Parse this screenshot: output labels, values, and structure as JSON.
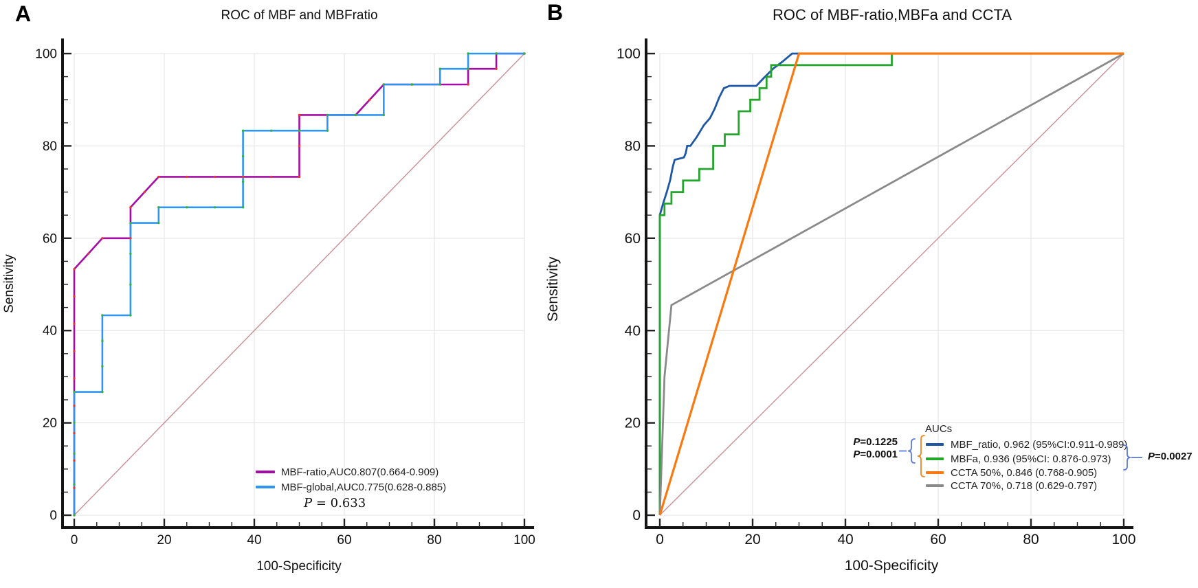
{
  "panels": [
    {
      "letter": "A"
    },
    {
      "letter": "B"
    }
  ],
  "chart_data": [
    {
      "type": "line",
      "title": "ROC of MBF and MBFratio",
      "xlabel": "100-Specificity",
      "ylabel": "Sensitivity",
      "xlim": [
        0,
        100
      ],
      "ylim": [
        0,
        100
      ],
      "xticks": [
        0,
        20,
        40,
        60,
        80,
        100
      ],
      "yticks": [
        0,
        20,
        40,
        60,
        80,
        100
      ],
      "minor_tick_step": 5,
      "grid": true,
      "reference_line": {
        "from": [
          0,
          0
        ],
        "to": [
          100,
          100
        ],
        "color": "#c98f94"
      },
      "series": [
        {
          "name": "MBF-ratio",
          "auc": 0.807,
          "ci": "0.664-0.909",
          "color": "#a50ba5",
          "marker_color": "#e8372c",
          "width": 2.6,
          "points": [
            [
              0,
              0
            ],
            [
              0,
              53.3
            ],
            [
              6.25,
              60
            ],
            [
              12.5,
              60
            ],
            [
              12.5,
              66.7
            ],
            [
              18.75,
              73.3
            ],
            [
              50,
              73.3
            ],
            [
              50,
              86.7
            ],
            [
              62.5,
              86.7
            ],
            [
              68.75,
              93.3
            ],
            [
              87.5,
              93.3
            ],
            [
              87.5,
              96.7
            ],
            [
              93.75,
              96.7
            ],
            [
              93.75,
              100
            ],
            [
              100,
              100
            ]
          ]
        },
        {
          "name": "MBF-global",
          "auc": 0.775,
          "ci": "0.628-0.885",
          "color": "#2e96f0",
          "marker_color": "#2fb043",
          "width": 2.6,
          "points": [
            [
              0,
              0
            ],
            [
              0,
              26.7
            ],
            [
              6.25,
              26.7
            ],
            [
              6.25,
              43.3
            ],
            [
              12.5,
              43.3
            ],
            [
              12.5,
              63.3
            ],
            [
              18.75,
              63.3
            ],
            [
              18.75,
              66.7
            ],
            [
              37.5,
              66.7
            ],
            [
              37.5,
              83.3
            ],
            [
              56.25,
              83.3
            ],
            [
              56.25,
              86.7
            ],
            [
              68.75,
              86.7
            ],
            [
              68.75,
              93.3
            ],
            [
              81.25,
              93.3
            ],
            [
              81.25,
              96.7
            ],
            [
              87.5,
              96.7
            ],
            [
              87.5,
              100
            ],
            [
              100,
              100
            ]
          ]
        }
      ],
      "legend": {
        "items": [
          {
            "label": "MBF-ratio,AUC0.807(0.664-0.909)",
            "color": "#a50ba5"
          },
          {
            "label": "MBF-global,AUC0.775(0.628-0.885)",
            "color": "#2e96f0"
          }
        ],
        "p_note": "P = 0.633"
      }
    },
    {
      "type": "line",
      "title": "ROC of MBF-ratio,MBFa and CCTA",
      "xlabel": "100-Specificity",
      "ylabel": "Sensitivity",
      "xlim": [
        0,
        100
      ],
      "ylim": [
        0,
        100
      ],
      "xticks": [
        0,
        20,
        40,
        60,
        80,
        100
      ],
      "yticks": [
        0,
        20,
        40,
        60,
        80,
        100
      ],
      "minor_tick_step": 5,
      "grid": true,
      "reference_line": {
        "from": [
          0,
          0
        ],
        "to": [
          100,
          100
        ],
        "color": "#c98f94"
      },
      "series": [
        {
          "name": "MBF_ratio",
          "auc": 0.962,
          "ci": "0.911-0.989",
          "color": "#1d56a5",
          "width": 2.8,
          "points": [
            [
              0,
              0
            ],
            [
              0,
              65
            ],
            [
              0.7,
              67.5
            ],
            [
              1.5,
              70
            ],
            [
              2.2,
              72.5
            ],
            [
              2.8,
              75.5
            ],
            [
              3.2,
              77
            ],
            [
              5.2,
              77.5
            ],
            [
              5.6,
              78.5
            ],
            [
              5.9,
              80
            ],
            [
              6.6,
              80
            ],
            [
              8,
              82
            ],
            [
              9.5,
              84.5
            ],
            [
              10.8,
              86
            ],
            [
              11.8,
              88
            ],
            [
              12.8,
              90.5
            ],
            [
              13.8,
              92.5
            ],
            [
              15,
              93
            ],
            [
              20.8,
              93
            ],
            [
              22.5,
              94.8
            ],
            [
              24.5,
              96.8
            ],
            [
              26.5,
              98.3
            ],
            [
              28.5,
              100
            ],
            [
              100,
              100
            ]
          ]
        },
        {
          "name": "MBFa",
          "auc": 0.936,
          "ci": "0.876-0.973",
          "color": "#24a52c",
          "width": 2.8,
          "points": [
            [
              0,
              0
            ],
            [
              0,
              65
            ],
            [
              1,
              65
            ],
            [
              1,
              67.5
            ],
            [
              2.5,
              67.5
            ],
            [
              2.5,
              70
            ],
            [
              5,
              70
            ],
            [
              5,
              72.5
            ],
            [
              8.5,
              72.5
            ],
            [
              8.5,
              75
            ],
            [
              11.5,
              75
            ],
            [
              11.5,
              80
            ],
            [
              14,
              80
            ],
            [
              14,
              82.5
            ],
            [
              17,
              82.5
            ],
            [
              17,
              87.5
            ],
            [
              19.5,
              87.5
            ],
            [
              19.5,
              90
            ],
            [
              21.5,
              90
            ],
            [
              21.5,
              92.5
            ],
            [
              23,
              92.5
            ],
            [
              23,
              95
            ],
            [
              24,
              95
            ],
            [
              24,
              97.5
            ],
            [
              50,
              97.5
            ],
            [
              50,
              100
            ],
            [
              100,
              100
            ]
          ]
        },
        {
          "name": "CCTA 70%",
          "auc": 0.718,
          "ci": "0.629-0.797",
          "color": "#8a8a8a",
          "width": 2.8,
          "points": [
            [
              0,
              0
            ],
            [
              1,
              30
            ],
            [
              2.5,
              45.5
            ],
            [
              100,
              100
            ]
          ]
        },
        {
          "name": "CCTA 50%",
          "auc": 0.846,
          "ci": "0.768-0.905",
          "color": "#f8790f",
          "width": 3.2,
          "points": [
            [
              0,
              0
            ],
            [
              30,
              100
            ],
            [
              100,
              100
            ]
          ]
        }
      ],
      "legend": {
        "header": "AUCs",
        "items": [
          {
            "label": "MBF_ratio, 0.962 (95%CI:0.911-0.989)",
            "color": "#1d56a5"
          },
          {
            "label": "MBFa, 0.936 (95%CI: 0.876-0.973)",
            "color": "#24a52c"
          },
          {
            "label": "CCTA 50%, 0.846 (0.768-0.905)",
            "color": "#f8790f"
          },
          {
            "label": "CCTA 70%, 0.718 (0.629-0.797)",
            "color": "#8a8a8a"
          }
        ],
        "p_values": {
          "left_top": "P=0.1225",
          "left_bottom": "P=0.0001",
          "right": "P=0.0027"
        },
        "brace_colors": {
          "pair_blue": "#5b79d9",
          "pair_orange": "#f5831c"
        }
      }
    }
  ]
}
